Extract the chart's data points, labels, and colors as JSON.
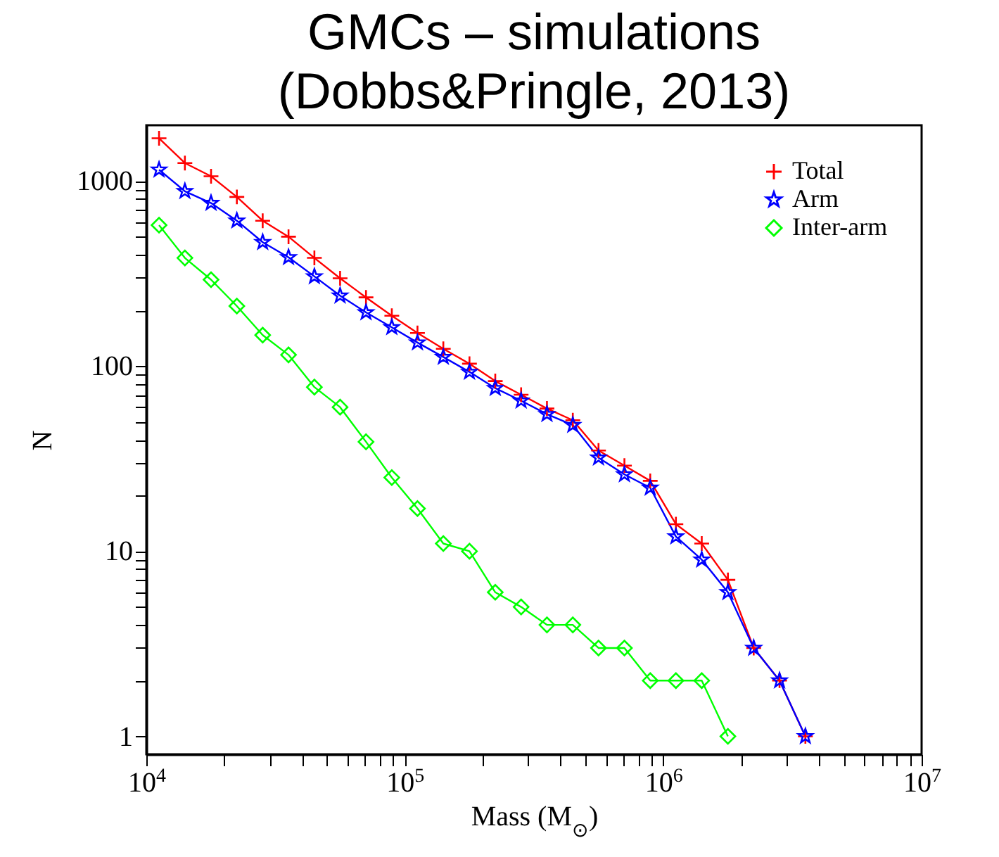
{
  "chart_data": {
    "type": "line",
    "title": "GMCs – simulations\n(Dobbs&Pringle, 2013)",
    "xlabel": "Mass (M$_{⊙}$)",
    "ylabel": "N",
    "x": [
      11200,
      14100,
      17800,
      22400,
      28200,
      35500,
      44700,
      56200,
      70800,
      89100,
      112000,
      141000,
      178000,
      224000,
      282000,
      355000,
      447000,
      562000,
      708000,
      891000,
      1120000,
      1410000,
      1780000,
      2240000,
      2820000,
      3550000
    ],
    "series": [
      {
        "name": "Total",
        "color": "#ff0000",
        "marker": "cross",
        "values": [
          1700,
          1250,
          1060,
          820,
          610,
          500,
          384,
          298,
          235,
          187,
          151,
          124,
          103,
          83,
          70,
          59,
          51,
          35,
          29,
          24,
          14,
          11,
          7,
          3,
          2,
          1
        ]
      },
      {
        "name": "Arm",
        "color": "#0000ff",
        "marker": "star",
        "values": [
          1150,
          880,
          760,
          610,
          467,
          387,
          305,
          240,
          195,
          162,
          134,
          112,
          93,
          76,
          65,
          55,
          48,
          32,
          26,
          22,
          12,
          9,
          6,
          3,
          2,
          1
        ]
      },
      {
        "name": "Inter-arm",
        "color": "#00ff00",
        "marker": "diamond",
        "values": [
          577,
          384,
          293,
          211,
          147,
          115,
          77,
          60,
          39,
          25,
          17,
          11,
          10,
          6,
          5,
          4,
          4,
          3,
          3,
          2,
          2,
          2,
          1,
          null,
          null,
          null
        ]
      }
    ],
    "log": "xy",
    "xlim": [
      10000,
      10000000
    ],
    "xticks": [
      {
        "value": 10000,
        "label": "10$^{4}$"
      },
      {
        "value": 20000,
        "label": null
      },
      {
        "value": 30000,
        "label": null
      },
      {
        "value": 40000,
        "label": null
      },
      {
        "value": 50000,
        "label": null
      },
      {
        "value": 60000,
        "label": null
      },
      {
        "value": 70000,
        "label": null
      },
      {
        "value": 80000,
        "label": null
      },
      {
        "value": 90000,
        "label": null
      },
      {
        "value": 100000,
        "label": "10$^{5}$"
      },
      {
        "value": 200000,
        "label": null
      },
      {
        "value": 300000,
        "label": null
      },
      {
        "value": 400000,
        "label": null
      },
      {
        "value": 500000,
        "label": null
      },
      {
        "value": 600000,
        "label": null
      },
      {
        "value": 700000,
        "label": null
      },
      {
        "value": 800000,
        "label": null
      },
      {
        "value": 900000,
        "label": null
      },
      {
        "value": 1000000,
        "label": "10$^{6}$"
      },
      {
        "value": 2000000,
        "label": null
      },
      {
        "value": 3000000,
        "label": null
      },
      {
        "value": 4000000,
        "label": null
      },
      {
        "value": 5000000,
        "label": null
      },
      {
        "value": 6000000,
        "label": null
      },
      {
        "value": 7000000,
        "label": null
      },
      {
        "value": 8000000,
        "label": null
      },
      {
        "value": 9000000,
        "label": null
      },
      {
        "value": 10000000,
        "label": "10$^{7}$"
      }
    ],
    "ylim": [
      0.8,
      2000
    ],
    "yticks": [
      1,
      {
        "value": 2,
        "label": null
      },
      {
        "value": 3,
        "label": null
      },
      {
        "value": 4,
        "label": null
      },
      {
        "value": 5,
        "label": null
      },
      {
        "value": 6,
        "label": null
      },
      {
        "value": 7,
        "label": null
      },
      {
        "value": 8,
        "label": null
      },
      {
        "value": 9,
        "label": null
      },
      10,
      {
        "value": 20,
        "label": null
      },
      {
        "value": 30,
        "label": null
      },
      {
        "value": 40,
        "label": null
      },
      {
        "value": 50,
        "label": null
      },
      {
        "value": 60,
        "label": null
      },
      {
        "value": 70,
        "label": null
      },
      {
        "value": 80,
        "label": null
      },
      {
        "value": 90,
        "label": null
      },
      100,
      {
        "value": 200,
        "label": null
      },
      {
        "value": 300,
        "label": null
      },
      {
        "value": 400,
        "label": null
      },
      {
        "value": 500,
        "label": null
      },
      {
        "value": 600,
        "label": null
      },
      {
        "value": 700,
        "label": null
      },
      {
        "value": 800,
        "label": null
      },
      {
        "value": 900,
        "label": null
      },
      1000
    ],
    "legend": "top right",
    "grid": false
  }
}
